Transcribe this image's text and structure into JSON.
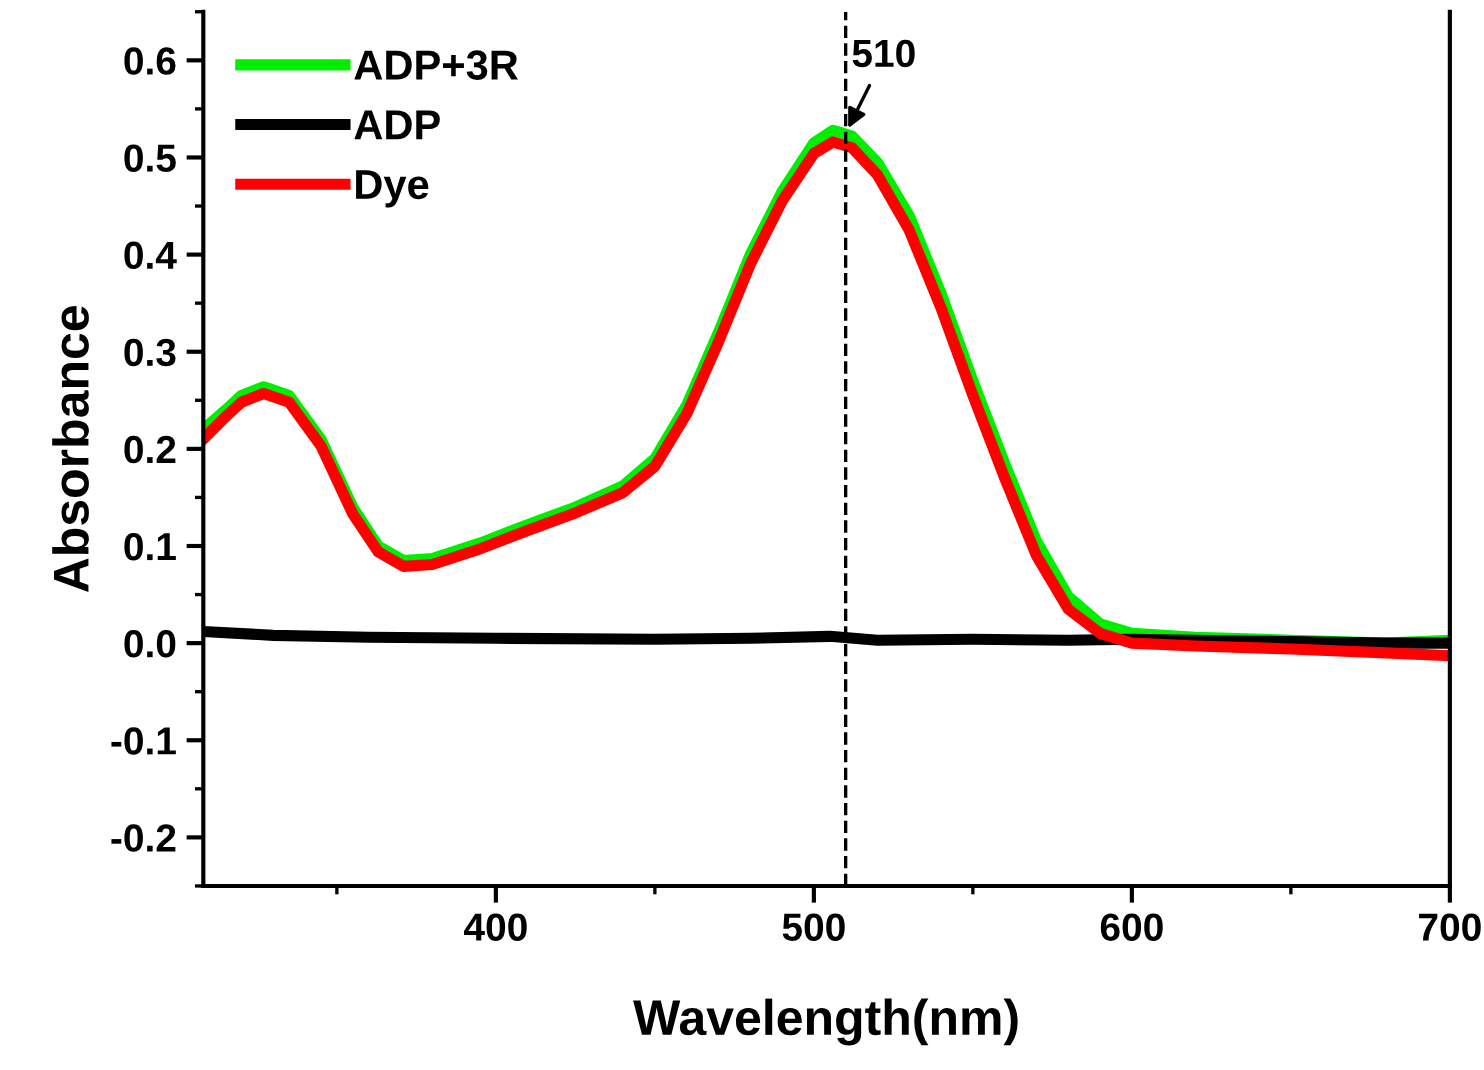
{
  "chart_data": {
    "type": "line",
    "xlabel": "Wavelength(nm)",
    "ylabel": "Absorbance",
    "xlim": [
      308,
      700
    ],
    "xticks": [
      400,
      500,
      600,
      700
    ],
    "ylim": [
      -0.25,
      0.65
    ],
    "yticks": [
      -0.2,
      -0.1,
      {
        "value": 0,
        "label": "0.0"
      },
      0.1,
      0.2,
      0.3,
      0.4,
      0.5,
      0.6
    ],
    "grid": false,
    "legend": "top left",
    "marker": "none",
    "line_style": "solid",
    "series": [
      {
        "name": "ADP+3R",
        "color": "#00ee00",
        "x": [
          308,
          315,
          320,
          327,
          335,
          345,
          355,
          363,
          371,
          380,
          395,
          410,
          425,
          440,
          450,
          460,
          470,
          480,
          490,
          500,
          506,
          512,
          520,
          530,
          540,
          550,
          560,
          570,
          580,
          590,
          600,
          620,
          650,
          680,
          700
        ],
        "values": [
          0.22,
          0.24,
          0.255,
          0.264,
          0.255,
          0.21,
          0.14,
          0.1,
          0.085,
          0.087,
          0.103,
          0.122,
          0.14,
          0.162,
          0.19,
          0.245,
          0.32,
          0.4,
          0.465,
          0.515,
          0.528,
          0.522,
          0.495,
          0.44,
          0.36,
          0.27,
          0.185,
          0.105,
          0.048,
          0.02,
          0.01,
          0.006,
          0.003,
          0.0,
          0.003
        ]
      },
      {
        "name": "ADP",
        "color": "#000000",
        "x": [
          308,
          330,
          360,
          400,
          450,
          480,
          505,
          520,
          550,
          580,
          600,
          640,
          680,
          700
        ],
        "values": [
          0.012,
          0.008,
          0.006,
          0.005,
          0.004,
          0.005,
          0.007,
          0.003,
          0.004,
          0.003,
          0.004,
          0.002,
          0.0,
          0.0
        ]
      },
      {
        "name": "Dye",
        "color": "#ff0000",
        "x": [
          308,
          315,
          320,
          327,
          335,
          345,
          355,
          363,
          371,
          380,
          395,
          410,
          425,
          440,
          450,
          460,
          470,
          480,
          490,
          500,
          506,
          512,
          520,
          530,
          540,
          550,
          560,
          570,
          580,
          590,
          600,
          620,
          650,
          680,
          700
        ],
        "values": [
          0.21,
          0.233,
          0.248,
          0.257,
          0.248,
          0.203,
          0.133,
          0.094,
          0.079,
          0.081,
          0.097,
          0.116,
          0.134,
          0.155,
          0.182,
          0.236,
          0.31,
          0.39,
          0.455,
          0.504,
          0.516,
          0.51,
          0.482,
          0.425,
          0.345,
          0.255,
          0.17,
          0.09,
          0.035,
          0.01,
          0.0,
          -0.003,
          -0.006,
          -0.01,
          -0.013
        ]
      }
    ],
    "ref_lines": [
      {
        "axis": "x",
        "value": 510,
        "color": "#000000",
        "line_style": "dashed"
      }
    ],
    "annotations": [
      {
        "text": "510",
        "x": 510,
        "y": 0.525
      }
    ]
  }
}
